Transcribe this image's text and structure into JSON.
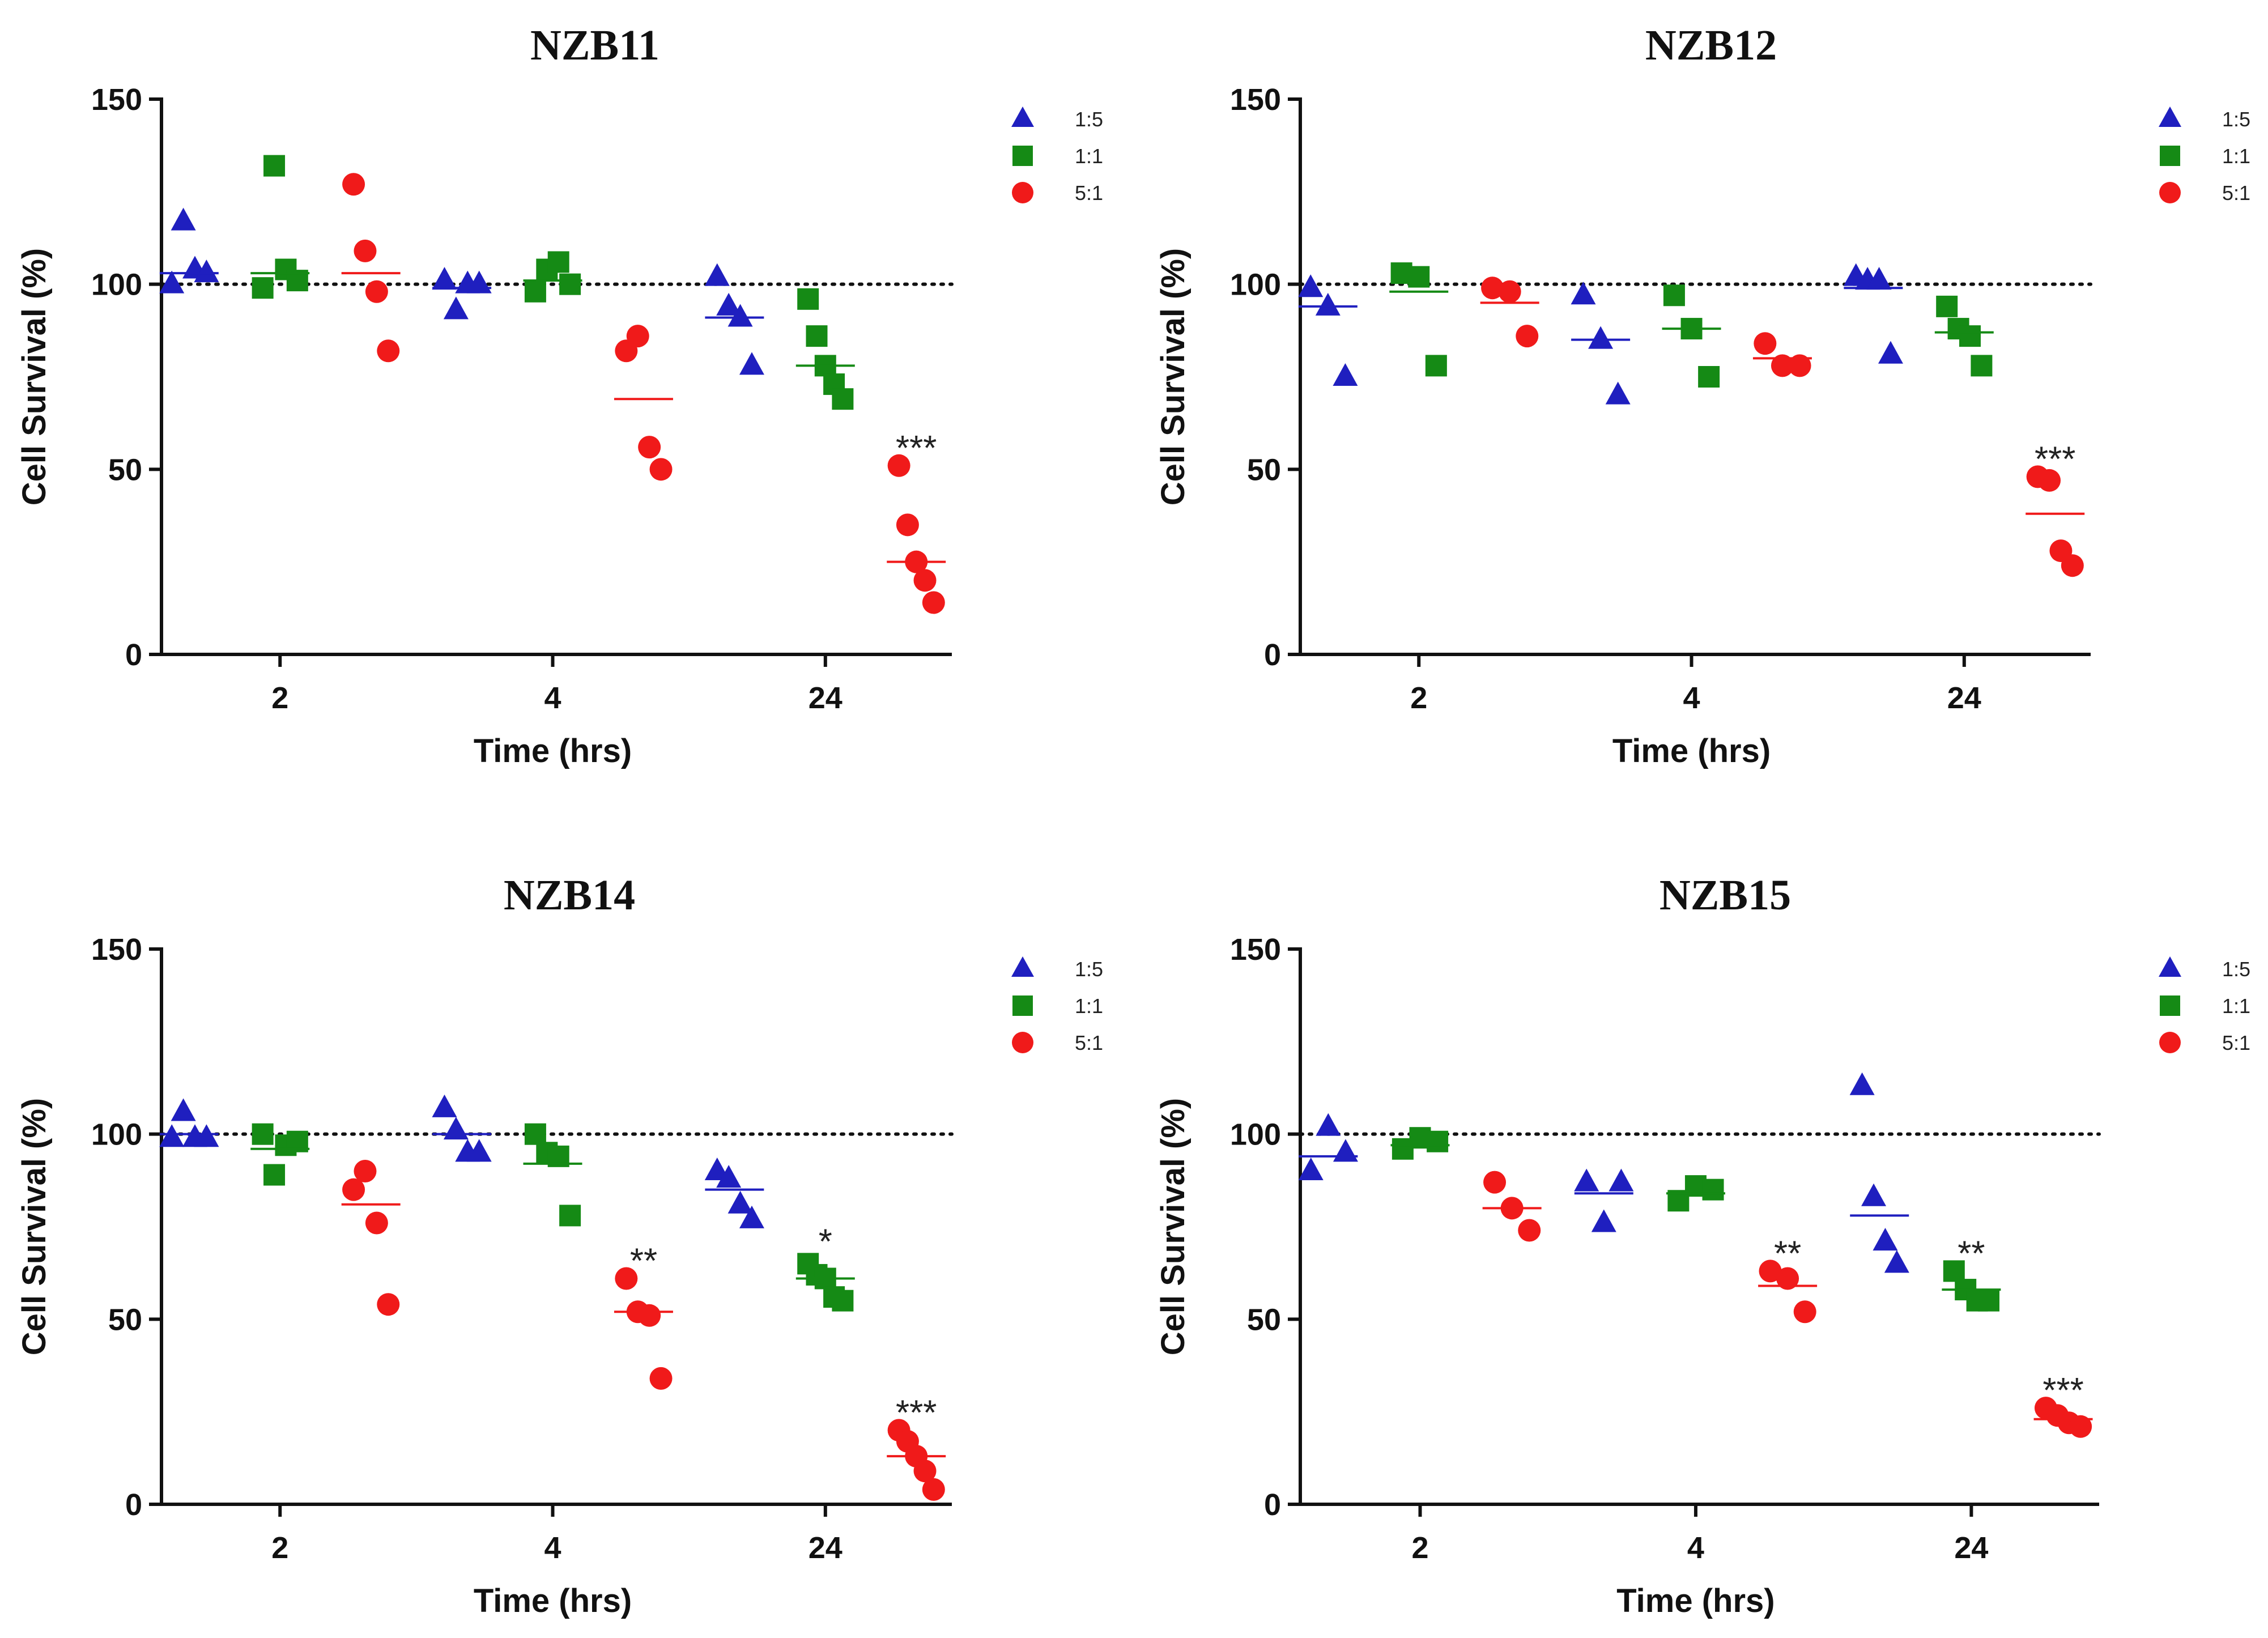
{
  "chart_data": [
    {
      "type": "scatter",
      "title": "NZB11",
      "xlabel": "Time (hrs)",
      "ylabel": "Cell Survival (%)",
      "ylim": [
        0,
        150
      ],
      "yticks": [
        0,
        50,
        100,
        150
      ],
      "categories": [
        "2",
        "4",
        "24"
      ],
      "reference_line": 100,
      "series": [
        {
          "name": "1:5",
          "marker": "triangle",
          "color": "#1f1fbf",
          "groups": [
            [
              100,
              117,
              104,
              103
            ],
            [
              101,
              93,
              100,
              100
            ],
            [
              102,
              94,
              91,
              78
            ]
          ],
          "means": [
            103,
            99,
            91
          ]
        },
        {
          "name": "1:1",
          "marker": "square",
          "color": "#158a15",
          "groups": [
            [
              99,
              132,
              104,
              101
            ],
            [
              98,
              104,
              106,
              100
            ],
            [
              96,
              86,
              78,
              73,
              69
            ]
          ],
          "means": [
            103,
            101,
            78
          ]
        },
        {
          "name": "5:1",
          "marker": "circle",
          "color": "#f01a1a",
          "groups": [
            [
              127,
              109,
              98,
              82
            ],
            [
              82,
              86,
              56,
              50
            ],
            [
              51,
              35,
              25,
              20,
              14
            ]
          ],
          "means": [
            103,
            69,
            25
          ]
        }
      ],
      "significance": [
        {
          "series": "5:1",
          "category": "24",
          "label": "***"
        }
      ]
    },
    {
      "type": "scatter",
      "title": "NZB12",
      "xlabel": "Time (hrs)",
      "ylabel": "Cell Survival (%)",
      "ylim": [
        0,
        150
      ],
      "yticks": [
        0,
        50,
        100,
        150
      ],
      "categories": [
        "2",
        "4",
        "24"
      ],
      "reference_line": 100,
      "series": [
        {
          "name": "1:5",
          "marker": "triangle",
          "color": "#1f1fbf",
          "groups": [
            [
              99,
              94,
              75
            ],
            [
              97,
              85,
              70
            ],
            [
              102,
              101,
              101,
              81
            ]
          ],
          "means": [
            94,
            85,
            99
          ]
        },
        {
          "name": "1:1",
          "marker": "square",
          "color": "#158a15",
          "groups": [
            [
              103,
              102,
              78
            ],
            [
              97,
              88,
              75
            ],
            [
              94,
              88,
              86,
              78
            ]
          ],
          "means": [
            98,
            88,
            87
          ]
        },
        {
          "name": "5:1",
          "marker": "circle",
          "color": "#f01a1a",
          "groups": [
            [
              99,
              98,
              86
            ],
            [
              84,
              78,
              78
            ],
            [
              48,
              47,
              28,
              24
            ]
          ],
          "means": [
            95,
            80,
            38
          ]
        }
      ],
      "significance": [
        {
          "series": "5:1",
          "category": "24",
          "label": "***"
        }
      ]
    },
    {
      "type": "scatter",
      "title": "NZB14",
      "xlabel": "Time (hrs)",
      "ylabel": "Cell Survival (%)",
      "ylim": [
        0,
        150
      ],
      "yticks": [
        0,
        50,
        100,
        150
      ],
      "categories": [
        "2",
        "4",
        "24"
      ],
      "reference_line": 100,
      "series": [
        {
          "name": "1:5",
          "marker": "triangle",
          "color": "#1f1fbf",
          "groups": [
            [
              99,
              106,
              99,
              99
            ],
            [
              107,
              101,
              95,
              95
            ],
            [
              90,
              88,
              81,
              77
            ]
          ],
          "means": [
            100,
            100,
            85
          ]
        },
        {
          "name": "1:1",
          "marker": "square",
          "color": "#158a15",
          "groups": [
            [
              100,
              89,
              97,
              98
            ],
            [
              100,
              95,
              94,
              78
            ],
            [
              65,
              62,
              61,
              56,
              55
            ]
          ],
          "means": [
            96,
            92,
            61
          ]
        },
        {
          "name": "5:1",
          "marker": "circle",
          "color": "#f01a1a",
          "groups": [
            [
              85,
              90,
              76,
              54
            ],
            [
              61,
              52,
              51,
              34
            ],
            [
              20,
              17,
              13,
              9,
              4
            ]
          ],
          "means": [
            81,
            52,
            13
          ]
        }
      ],
      "significance": [
        {
          "series": "5:1",
          "category": "4",
          "label": "**"
        },
        {
          "series": "1:1",
          "category": "24",
          "label": "*"
        },
        {
          "series": "5:1",
          "category": "24",
          "label": "***"
        }
      ]
    },
    {
      "type": "scatter",
      "title": "NZB15",
      "xlabel": "Time (hrs)",
      "ylabel": "Cell Survival (%)",
      "ylim": [
        0,
        150
      ],
      "yticks": [
        0,
        50,
        100,
        150
      ],
      "categories": [
        "2",
        "4",
        "24"
      ],
      "reference_line": 100,
      "series": [
        {
          "name": "1:5",
          "marker": "triangle",
          "color": "#1f1fbf",
          "groups": [
            [
              90,
              102,
              95
            ],
            [
              87,
              76,
              87
            ],
            [
              113,
              83,
              71,
              65
            ]
          ],
          "means": [
            94,
            84,
            78
          ]
        },
        {
          "name": "1:1",
          "marker": "square",
          "color": "#158a15",
          "groups": [
            [
              96,
              99,
              98
            ],
            [
              82,
              86,
              85
            ],
            [
              63,
              58,
              55,
              55
            ]
          ],
          "means": [
            97,
            84,
            58
          ]
        },
        {
          "name": "5:1",
          "marker": "circle",
          "color": "#f01a1a",
          "groups": [
            [
              87,
              80,
              74
            ],
            [
              63,
              61,
              52
            ],
            [
              26,
              24,
              22,
              21
            ]
          ],
          "means": [
            80,
            59,
            23
          ]
        }
      ],
      "significance": [
        {
          "series": "5:1",
          "category": "4",
          "label": "**"
        },
        {
          "series": "1:1",
          "category": "24",
          "label": "**"
        },
        {
          "series": "5:1",
          "category": "24",
          "label": "***"
        }
      ]
    }
  ]
}
